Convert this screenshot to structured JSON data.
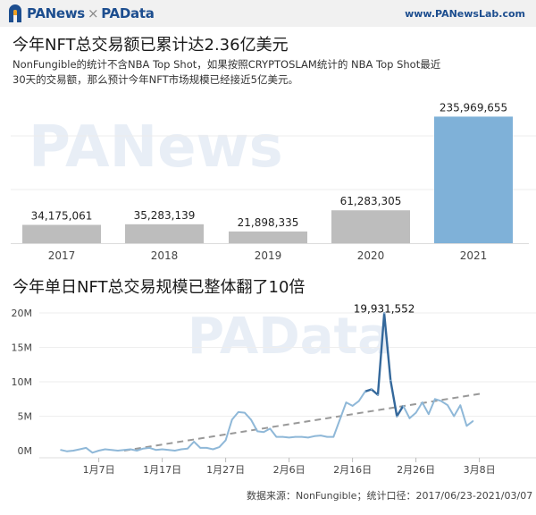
{
  "header": {
    "brand_left": "PANews",
    "brand_sep": "×",
    "brand_right": "PAData",
    "site": "www.PANewsLab.com"
  },
  "section1": {
    "title": "今年NFT总交易额已累计达2.36亿美元",
    "subtitle": "NonFungible的统计不含NBA Top Shot，如果按照CRYPTOSLAM统计的 NBA Top Shot最近30天的交易额，那么预计今年NFT市场规模已经接近5亿美元。"
  },
  "section2": {
    "title": "今年单日NFT总交易规模已整体翻了10倍"
  },
  "watermarks": {
    "top": "PANews",
    "bottom": "PAData"
  },
  "footer": "数据来源：NonFungible；统计口径：2017/06/23-2021/03/07",
  "colors": {
    "bar_gray": "#bdbdbd",
    "bar_highlight": "#7fb1d8",
    "line": "#8fb8d8",
    "line_dark": "#34689b",
    "trend": "#999999",
    "brand": "#1d4e8f"
  },
  "chart_data": [
    {
      "type": "bar",
      "title": "今年NFT总交易额已累计达2.36亿美元",
      "categories": [
        "2017",
        "2018",
        "2019",
        "2020",
        "2021"
      ],
      "values": [
        34175061,
        35283139,
        21898335,
        61283305,
        235969655
      ],
      "labels": [
        "34,175,061",
        "35,283,139",
        "21,898,335",
        "61,283,305",
        "235,969,655"
      ],
      "highlight_index": 4,
      "ylim": [
        0,
        240000000
      ]
    },
    {
      "type": "line",
      "title": "今年单日NFT总交易规模已整体翻了10倍",
      "x_ticks": [
        "1月7日",
        "1月17日",
        "1月27日",
        "2月6日",
        "2月16日",
        "2月26日",
        "3月8日"
      ],
      "x_tick_days": [
        6,
        16,
        26,
        36,
        46,
        56,
        66
      ],
      "y_ticks": [
        "20M",
        "15M",
        "10M",
        "5M",
        "0M"
      ],
      "y_tick_values": [
        20000000,
        15000000,
        10000000,
        5000000,
        0
      ],
      "ylim": [
        0,
        20000000
      ],
      "xlim": [
        0,
        67
      ],
      "series": [
        {
          "days": [
            0,
            1,
            2,
            3,
            4,
            5,
            6,
            7,
            8,
            9,
            10,
            11,
            12,
            13,
            14,
            15,
            16,
            17,
            18,
            19,
            20,
            21,
            22,
            23,
            24,
            25,
            26,
            27,
            28,
            29,
            30,
            31,
            32,
            33,
            34,
            35,
            36,
            37,
            38,
            39,
            40,
            41,
            42,
            43,
            44,
            45,
            46,
            47,
            48,
            49,
            50,
            51,
            52,
            53,
            54,
            55,
            56,
            57,
            58,
            59,
            60,
            61,
            62,
            63,
            64,
            65
          ],
          "values": [
            0.1,
            -0.1,
            0.0,
            0.2,
            0.4,
            -0.3,
            0.0,
            0.2,
            0.1,
            0.0,
            0.1,
            0.2,
            0.0,
            0.3,
            0.4,
            0.1,
            0.2,
            0.1,
            0.0,
            0.2,
            0.3,
            1.3,
            0.4,
            0.4,
            0.2,
            0.5,
            1.5,
            4.5,
            5.6,
            5.5,
            4.5,
            2.8,
            2.7,
            3.2,
            2.0,
            2.0,
            1.9,
            2.0,
            2.0,
            1.9,
            2.1,
            2.2,
            2.0,
            2.0,
            4.5,
            7.0,
            6.5,
            7.2,
            8.6,
            8.9,
            8.1,
            19.93,
            10.2,
            5.0,
            6.5,
            4.7,
            5.5,
            7.0,
            5.3,
            7.5,
            7.2,
            6.6,
            5.0,
            6.6,
            3.6,
            4.3
          ],
          "peak_label": "19,931,552",
          "peak_index": 51,
          "unit": "M"
        }
      ],
      "trend": {
        "start": [
          10,
          0
        ],
        "end": [
          67,
          8.3
        ]
      }
    }
  ]
}
